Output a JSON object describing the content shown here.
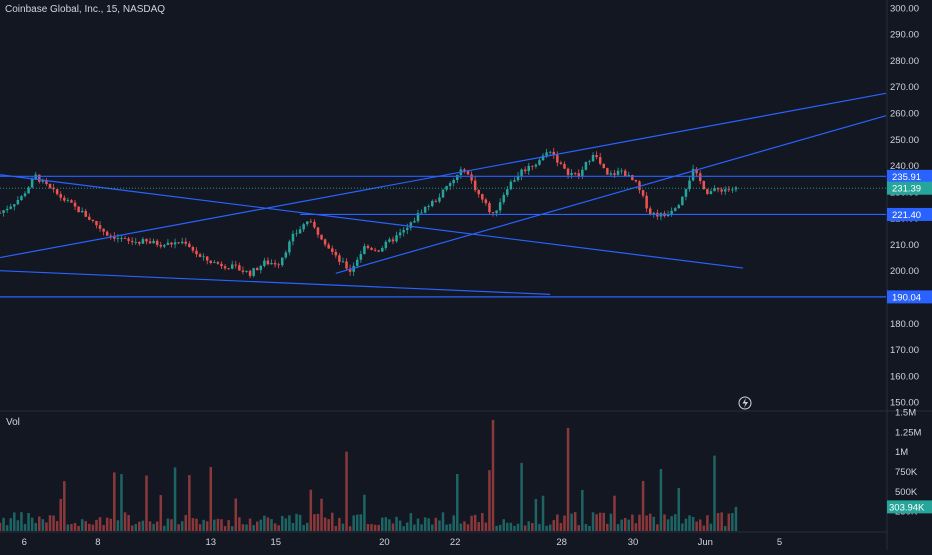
{
  "header": {
    "title": "Coinbase Global, Inc., 15, NASDAQ"
  },
  "volume_pane": {
    "title": "Vol"
  },
  "price_axis": {
    "ticks": [
      "300.00",
      "290.00",
      "280.00",
      "270.00",
      "260.00",
      "250.00",
      "240.00",
      "230.00",
      "220.00",
      "210.00",
      "200.00",
      "190.00",
      "180.00",
      "170.00",
      "160.00",
      "150.00"
    ]
  },
  "volume_axis": {
    "ticks": [
      "1.5M",
      "1.25M",
      "1M",
      "750K",
      "500K",
      "250K"
    ]
  },
  "time_axis": {
    "ticks": [
      "6",
      "8",
      "13",
      "15",
      "20",
      "22",
      "28",
      "30",
      "Jun",
      "5"
    ]
  },
  "badges": [
    {
      "text": "235.91",
      "kind": "line"
    },
    {
      "text": "231.39",
      "kind": "last"
    },
    {
      "text": "221.40",
      "kind": "line"
    },
    {
      "text": "190.04",
      "kind": "line"
    }
  ],
  "volume_badge": {
    "text": "303.94K"
  },
  "colors": {
    "background": "#131722",
    "up": "#26a69a",
    "down": "#ef5350",
    "trendline": "#2962ff",
    "text": "#d1d4dc",
    "last_price": "#26a69a"
  },
  "chart_data": {
    "type": "candlestick",
    "symbol": "Coinbase Global, Inc.",
    "interval": "15",
    "exchange": "NASDAQ",
    "ylim": [
      147,
      303
    ],
    "volume_ylim": [
      0,
      1500000
    ],
    "x_ticks": [
      "6",
      "8",
      "13",
      "15",
      "20",
      "22",
      "28",
      "30",
      "Jun",
      "5"
    ],
    "price_path": [
      {
        "t": 0,
        "v": 222
      },
      {
        "t": 3,
        "v": 228
      },
      {
        "t": 5,
        "v": 236
      },
      {
        "t": 7,
        "v": 231
      },
      {
        "t": 9,
        "v": 227
      },
      {
        "t": 12,
        "v": 221
      },
      {
        "t": 15,
        "v": 214
      },
      {
        "t": 18,
        "v": 211
      },
      {
        "t": 20,
        "v": 211
      },
      {
        "t": 23,
        "v": 210
      },
      {
        "t": 26,
        "v": 211
      },
      {
        "t": 28,
        "v": 205
      },
      {
        "t": 30,
        "v": 203
      },
      {
        "t": 33,
        "v": 201
      },
      {
        "t": 35,
        "v": 199
      },
      {
        "t": 37,
        "v": 203
      },
      {
        "t": 39,
        "v": 203
      },
      {
        "t": 41,
        "v": 213
      },
      {
        "t": 43,
        "v": 219
      },
      {
        "t": 45,
        "v": 213
      },
      {
        "t": 47,
        "v": 205
      },
      {
        "t": 49,
        "v": 200
      },
      {
        "t": 51,
        "v": 209
      },
      {
        "t": 53,
        "v": 208
      },
      {
        "t": 55,
        "v": 212
      },
      {
        "t": 57,
        "v": 216
      },
      {
        "t": 59,
        "v": 223
      },
      {
        "t": 61,
        "v": 227
      },
      {
        "t": 63,
        "v": 233
      },
      {
        "t": 65,
        "v": 239
      },
      {
        "t": 67,
        "v": 229
      },
      {
        "t": 69,
        "v": 221
      },
      {
        "t": 71,
        "v": 232
      },
      {
        "t": 73,
        "v": 238
      },
      {
        "t": 75,
        "v": 241
      },
      {
        "t": 77,
        "v": 246
      },
      {
        "t": 79,
        "v": 238
      },
      {
        "t": 81,
        "v": 236
      },
      {
        "t": 83,
        "v": 245
      },
      {
        "t": 85,
        "v": 236
      },
      {
        "t": 87,
        "v": 238
      },
      {
        "t": 89,
        "v": 233
      },
      {
        "t": 91,
        "v": 222
      },
      {
        "t": 93,
        "v": 221
      },
      {
        "t": 95,
        "v": 226
      },
      {
        "t": 97,
        "v": 238
      },
      {
        "t": 99,
        "v": 230
      },
      {
        "t": 101,
        "v": 231
      },
      {
        "t": 103,
        "v": 231
      }
    ],
    "last_price": 231.39,
    "last_volume": 303940,
    "horizontal_levels": [
      235.91,
      221.4,
      190.04
    ],
    "trendlines": [
      {
        "from": {
          "t": 0,
          "v": 236.5
        },
        "to": {
          "t": 104,
          "v": 201
        }
      },
      {
        "from": {
          "t": 0,
          "v": 200
        },
        "to": {
          "t": 77,
          "v": 191
        }
      },
      {
        "from": {
          "t": 0,
          "v": 205
        },
        "to": {
          "t": 124,
          "v": 267.5
        }
      },
      {
        "from": {
          "t": 47,
          "v": 199
        },
        "to": {
          "t": 124,
          "v": 259
        }
      },
      {
        "from": {
          "t": 42,
          "v": 221.4
        },
        "to": {
          "t": 124,
          "v": 221.4
        }
      },
      {
        "from": {
          "t": 0,
          "v": 235.91
        },
        "to": {
          "t": 124,
          "v": 235.91
        }
      },
      {
        "from": {
          "t": 0,
          "v": 190.04
        },
        "to": {
          "t": 124,
          "v": 190.04
        }
      }
    ]
  }
}
